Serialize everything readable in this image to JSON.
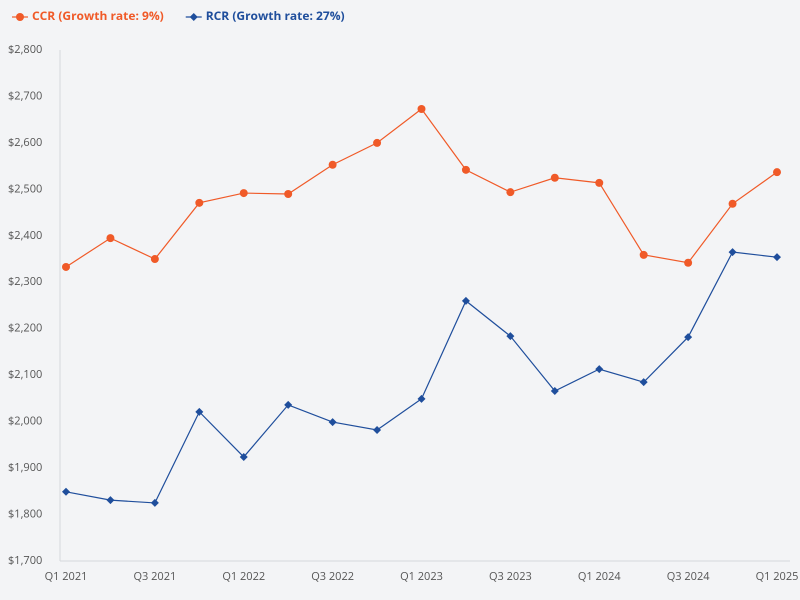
{
  "chart_data": {
    "type": "line",
    "categories": [
      "Q1 2021",
      null,
      "Q3 2021",
      null,
      "Q1 2022",
      null,
      "Q3 2022",
      null,
      "Q1 2023",
      null,
      "Q3 2023",
      null,
      "Q1 2024",
      null,
      "Q3 2024",
      null,
      "Q1 2025"
    ],
    "series": [
      {
        "name": "CCR (Growth rate: 9%)",
        "color": "#f05a28",
        "marker": "circle",
        "values": [
          2333,
          2395,
          2350,
          2471,
          2492,
          2490,
          2553,
          2600,
          2673,
          2542,
          2494,
          2525,
          2514,
          2359,
          2342,
          2469,
          2537
        ]
      },
      {
        "name": "RCR (Growth rate: 27%)",
        "color": "#1f4e9c",
        "marker": "diamond",
        "values": [
          1849,
          1831,
          1825,
          2021,
          1924,
          2036,
          1999,
          1982,
          2049,
          2260,
          2184,
          2066,
          2113,
          2085,
          2182,
          2365,
          2354
        ]
      }
    ],
    "ylim": [
      1700,
      2800
    ],
    "yticks": [
      {
        "value": 1700,
        "label": "$1,700"
      },
      {
        "value": 1800,
        "label": "$1,800"
      },
      {
        "value": 1900,
        "label": "$1,900"
      },
      {
        "value": 2000,
        "label": "$2,000"
      },
      {
        "value": 2100,
        "label": "$2,100"
      },
      {
        "value": 2200,
        "label": "$2,200"
      },
      {
        "value": 2300,
        "label": "$2,300"
      },
      {
        "value": 2400,
        "label": "$2,400"
      },
      {
        "value": 2500,
        "label": "$2,500"
      },
      {
        "value": 2600,
        "label": "$2,600"
      },
      {
        "value": 2700,
        "label": "$2,700"
      },
      {
        "value": 2800,
        "label": "$2,800"
      }
    ],
    "legend": "top-left"
  }
}
